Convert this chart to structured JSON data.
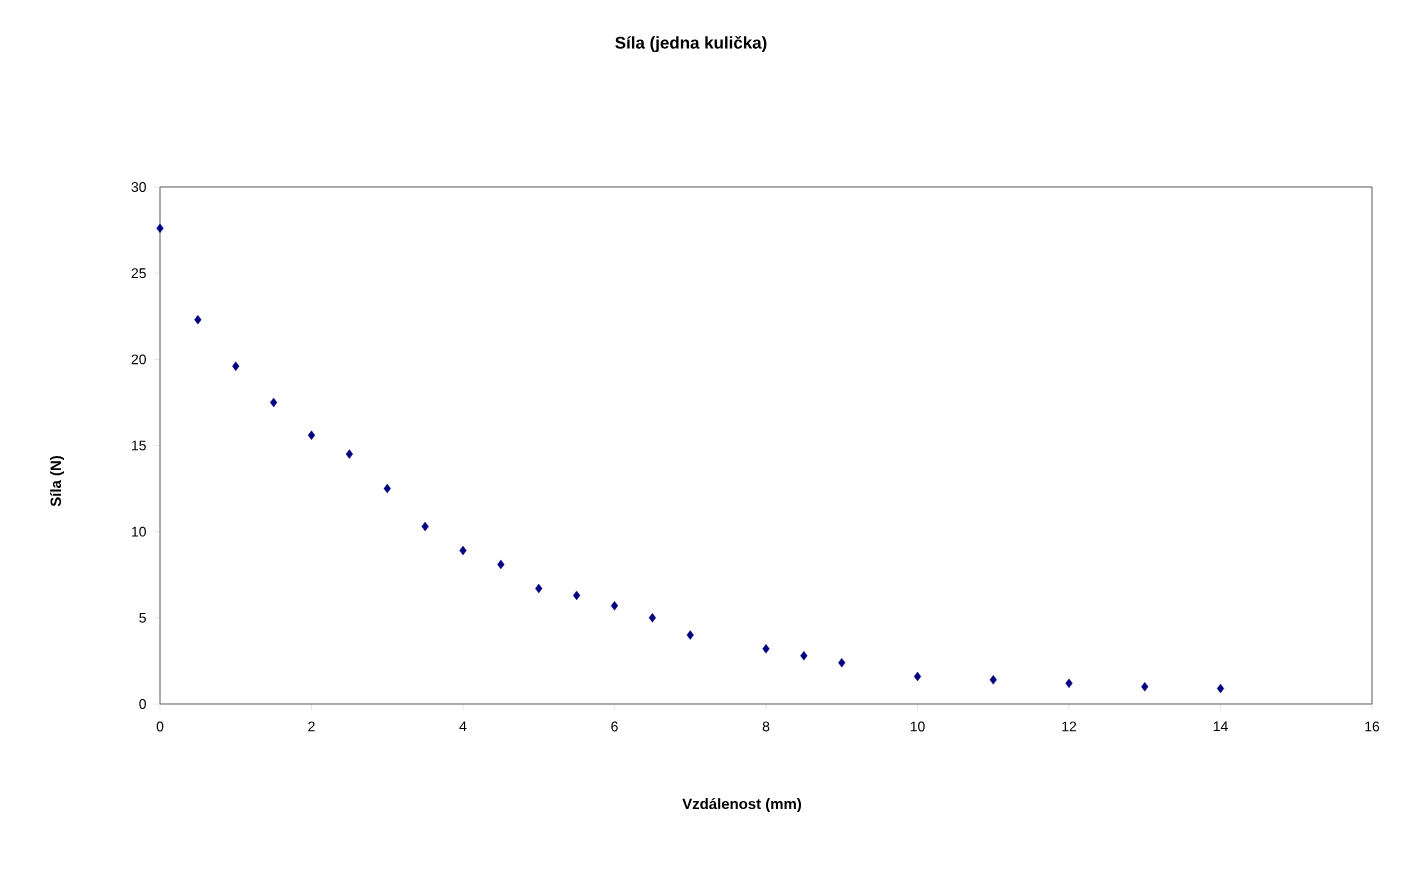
{
  "chart_data": {
    "type": "scatter",
    "title": "Síla (jedna kulička)",
    "xlabel": "Vzdálenost  (mm)",
    "ylabel": "Síla (N)",
    "x": [
      0,
      0.5,
      1,
      1.5,
      2,
      2.5,
      3,
      3.5,
      4,
      4.5,
      5,
      5.5,
      6,
      6.5,
      7,
      8,
      8.5,
      9,
      10,
      11,
      12,
      13,
      14
    ],
    "values": [
      27.6,
      22.3,
      19.6,
      17.5,
      15.6,
      14.5,
      12.5,
      10.3,
      8.9,
      8.1,
      6.7,
      6.3,
      5.7,
      5.0,
      4.0,
      3.2,
      2.8,
      2.4,
      1.6,
      1.4,
      1.2,
      1.0,
      0.9
    ],
    "color": "#000080",
    "marker": "diamond",
    "xlim": [
      0,
      16
    ],
    "xticks": [
      0,
      2,
      4,
      6,
      8,
      10,
      12,
      14,
      16
    ],
    "ylim": [
      0,
      30
    ],
    "yticks": [
      0,
      5,
      10,
      15,
      20,
      25,
      30
    ],
    "grid": false
  }
}
